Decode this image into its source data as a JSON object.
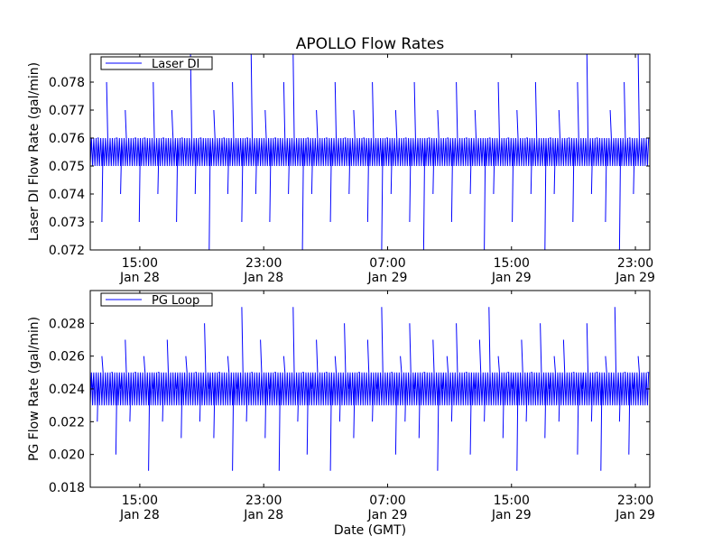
{
  "chart_data": [
    {
      "type": "line",
      "title": "APOLLO Flow Rates",
      "xlabel": "",
      "ylabel": "Laser DI Flow Rate (gal/min)",
      "ylim": [
        0.072,
        0.079
      ],
      "yticks": [
        0.072,
        0.073,
        0.074,
        0.075,
        0.076,
        0.077,
        0.078
      ],
      "ytick_labels": [
        "0.072",
        "0.073",
        "0.074",
        "0.075",
        "0.076",
        "0.077",
        "0.078"
      ],
      "xlim_hours_from_jan28_0000": [
        11.8,
        47.93
      ],
      "xticks_hours": [
        15,
        23,
        31,
        39,
        47
      ],
      "xtick_labels": [
        [
          "15:00",
          "Jan 28"
        ],
        [
          "23:00",
          "Jan 28"
        ],
        [
          "07:00",
          "Jan 29"
        ],
        [
          "15:00",
          "Jan 29"
        ],
        [
          "23:00",
          "Jan 29"
        ]
      ],
      "legend": {
        "label": "Laser DI",
        "placement": "top-left"
      },
      "color": "#0000ff",
      "series": [
        {
          "name": "Laser DI",
          "values": [
            0.075,
            0.076,
            0.073,
            0.078,
            0.075,
            0.076,
            0.074,
            0.077,
            0.075,
            0.076,
            0.073,
            0.076,
            0.075,
            0.078,
            0.074,
            0.076,
            0.075,
            0.077,
            0.073,
            0.076,
            0.075,
            0.079,
            0.074,
            0.076,
            0.075,
            0.072,
            0.077,
            0.075,
            0.076,
            0.074,
            0.078,
            0.075,
            0.073,
            0.076,
            0.079,
            0.074,
            0.075,
            0.077,
            0.073,
            0.076,
            0.075,
            0.078,
            0.074,
            0.079,
            0.075,
            0.072,
            0.076,
            0.074,
            0.077,
            0.075,
            0.076,
            0.073,
            0.078,
            0.075,
            0.076,
            0.074,
            0.077,
            0.075,
            0.076,
            0.073,
            0.078,
            0.075,
            0.072,
            0.076,
            0.074,
            0.077,
            0.075,
            0.076,
            0.073,
            0.078,
            0.075,
            0.072,
            0.076,
            0.074,
            0.077,
            0.075,
            0.076,
            0.073,
            0.078,
            0.075,
            0.076,
            0.074,
            0.077,
            0.075,
            0.072,
            0.076,
            0.074,
            0.078,
            0.075,
            0.076,
            0.073,
            0.077,
            0.075,
            0.076,
            0.074,
            0.078,
            0.075,
            0.072,
            0.076,
            0.074,
            0.077,
            0.075,
            0.076,
            0.073,
            0.078,
            0.075,
            0.079,
            0.074,
            0.076,
            0.075,
            0.073,
            0.077,
            0.075,
            0.072,
            0.078,
            0.076,
            0.074,
            0.079,
            0.075,
            0.076
          ]
        }
      ]
    },
    {
      "type": "line",
      "title": "",
      "xlabel": "Date (GMT)",
      "ylabel": "PG Flow Rate (gal/min)",
      "ylim": [
        0.018,
        0.03
      ],
      "yticks": [
        0.018,
        0.02,
        0.022,
        0.024,
        0.026,
        0.028
      ],
      "ytick_labels": [
        "0.018",
        "0.020",
        "0.022",
        "0.024",
        "0.026",
        "0.028"
      ],
      "xlim_hours_from_jan28_0000": [
        11.8,
        47.93
      ],
      "xticks_hours": [
        15,
        23,
        31,
        39,
        47
      ],
      "xtick_labels": [
        [
          "15:00",
          "Jan 28"
        ],
        [
          "23:00",
          "Jan 28"
        ],
        [
          "07:00",
          "Jan 29"
        ],
        [
          "15:00",
          "Jan 29"
        ],
        [
          "23:00",
          "Jan 29"
        ]
      ],
      "legend": {
        "label": "PG Loop",
        "placement": "top-left"
      },
      "color": "#0000ff",
      "series": [
        {
          "name": "PG Loop",
          "values": [
            0.024,
            0.022,
            0.026,
            0.023,
            0.025,
            0.02,
            0.024,
            0.027,
            0.022,
            0.025,
            0.023,
            0.026,
            0.019,
            0.024,
            0.025,
            0.022,
            0.027,
            0.023,
            0.024,
            0.021,
            0.026,
            0.023,
            0.025,
            0.022,
            0.028,
            0.024,
            0.021,
            0.025,
            0.023,
            0.026,
            0.019,
            0.024,
            0.029,
            0.022,
            0.025,
            0.023,
            0.027,
            0.021,
            0.024,
            0.025,
            0.019,
            0.026,
            0.023,
            0.029,
            0.022,
            0.025,
            0.02,
            0.024,
            0.027,
            0.023,
            0.025,
            0.019,
            0.026,
            0.022,
            0.028,
            0.024,
            0.021,
            0.025,
            0.023,
            0.027,
            0.022,
            0.024,
            0.029,
            0.023,
            0.025,
            0.02,
            0.026,
            0.022,
            0.028,
            0.024,
            0.021,
            0.025,
            0.023,
            0.027,
            0.019,
            0.024,
            0.026,
            0.022,
            0.028,
            0.023,
            0.025,
            0.02,
            0.024,
            0.027,
            0.022,
            0.029,
            0.023,
            0.026,
            0.021,
            0.025,
            0.024,
            0.019,
            0.027,
            0.022,
            0.025,
            0.023,
            0.028,
            0.021,
            0.024,
            0.026,
            0.022,
            0.027,
            0.023,
            0.025,
            0.02,
            0.024,
            0.028,
            0.022,
            0.025,
            0.019,
            0.026,
            0.023,
            0.029,
            0.022,
            0.025,
            0.02,
            0.024,
            0.026,
            0.023,
            0.025
          ]
        }
      ]
    }
  ]
}
